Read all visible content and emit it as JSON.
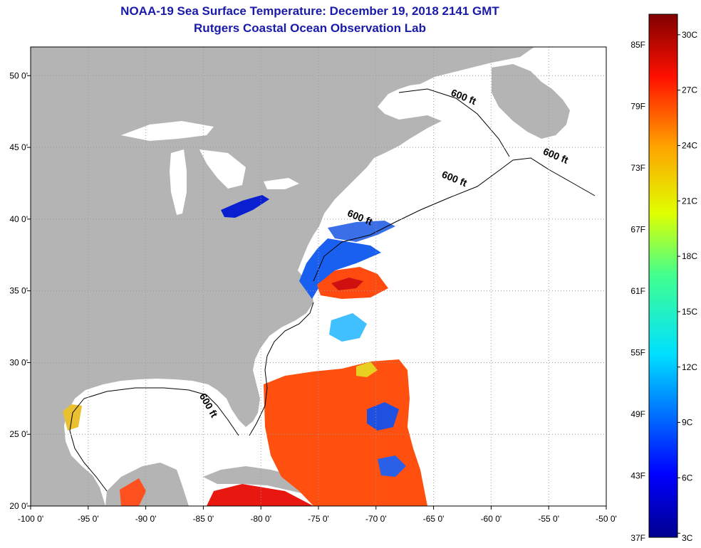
{
  "header": {
    "title": "NOAA-19 Sea Surface Temperature:  December 19, 2018 2141 GMT",
    "subtitle": "Rutgers Coastal Ocean Observation Lab"
  },
  "map": {
    "lon_range": [
      -100,
      -50
    ],
    "lat_range": [
      20,
      52
    ],
    "lon_ticks": [
      {
        "value": -100,
        "label": "-100 0'"
      },
      {
        "value": -95,
        "label": "-95 0'"
      },
      {
        "value": -90,
        "label": "-90 0'"
      },
      {
        "value": -85,
        "label": "-85 0'"
      },
      {
        "value": -80,
        "label": "-80 0'"
      },
      {
        "value": -75,
        "label": "-75 0'"
      },
      {
        "value": -70,
        "label": "-70 0'"
      },
      {
        "value": -65,
        "label": "-65 0'"
      },
      {
        "value": -60,
        "label": "-60 0'"
      },
      {
        "value": -55,
        "label": "-55 0'"
      },
      {
        "value": -50,
        "label": "-50 0'"
      }
    ],
    "lat_ticks": [
      {
        "value": 20,
        "label": "20 0'"
      },
      {
        "value": 25,
        "label": "25 0'"
      },
      {
        "value": 30,
        "label": "30 0'"
      },
      {
        "value": 35,
        "label": "35 0'"
      },
      {
        "value": 40,
        "label": "40 0'"
      },
      {
        "value": 45,
        "label": "45 0'"
      },
      {
        "value": 50,
        "label": "50 0'"
      }
    ],
    "bathymetry_label": "600 ft",
    "bathymetry_labels": [
      {
        "text": "600 ft",
        "lon": -62.5,
        "lat": 48.3
      },
      {
        "text": "600 ft",
        "lon": -54.5,
        "lat": 44.2
      },
      {
        "text": "600 ft",
        "lon": -63.3,
        "lat": 42.6
      },
      {
        "text": "600 ft",
        "lon": -71.5,
        "lat": 39.9
      },
      {
        "text": "600 ft",
        "lon": -84.8,
        "lat": 26.9
      }
    ],
    "colors": {
      "land": "#b4b4b4",
      "ocean_no_data": "#ffffff",
      "grid": "#9a9a9a"
    }
  },
  "colorbar": {
    "min_f": 37,
    "max_f": 88,
    "fahrenheit_labels": [
      "85F",
      "79F",
      "73F",
      "67F",
      "61F",
      "55F",
      "49F",
      "43F",
      "37F"
    ],
    "celsius_labels": [
      "30C",
      "27C",
      "24C",
      "21C",
      "18C",
      "15C",
      "12C",
      "9C",
      "6C",
      "3C"
    ]
  }
}
